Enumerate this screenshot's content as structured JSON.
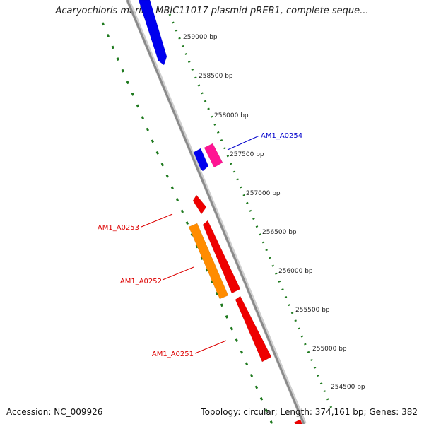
{
  "title": "Acaryochloris marina MBIC11017 plasmid pREB1, complete seque...",
  "accession": "Accession: NC_009926",
  "summary": "Topology: circular; Length: 374,161 bp; Genes: 382",
  "colors": {
    "backbone": "#8a8a8a",
    "tick_ring": "#1f7a1f",
    "gene_blue": "#0000ee",
    "gene_red": "#ee0000",
    "gene_orange": "#ff8c00",
    "gene_magenta": "#ff1493",
    "tick_label": "#222222"
  },
  "ticks": [
    {
      "label": "259000 bp"
    },
    {
      "label": "258500 bp"
    },
    {
      "label": "258000 bp"
    },
    {
      "label": "257500 bp"
    },
    {
      "label": "257000 bp"
    },
    {
      "label": "256500 bp"
    },
    {
      "label": "256000 bp"
    },
    {
      "label": "255500 bp"
    },
    {
      "label": "255000 bp"
    },
    {
      "label": "254500 bp"
    }
  ],
  "gene_labels": [
    {
      "label": "AM1_A0254",
      "color": "#0000cc"
    },
    {
      "label": "AM1_A0253",
      "color": "#dd0000"
    },
    {
      "label": "AM1_A0252",
      "color": "#dd0000"
    },
    {
      "label": "AM1_A0251",
      "color": "#dd0000"
    }
  ]
}
